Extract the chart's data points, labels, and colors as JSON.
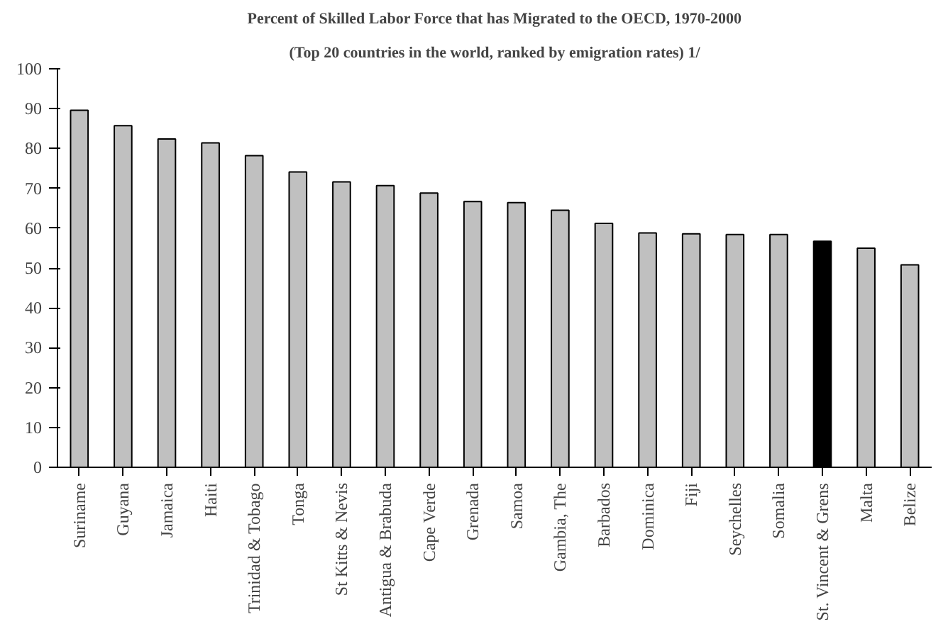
{
  "chart_data": {
    "type": "bar",
    "title": "Percent of Skilled Labor Force that has Migrated to the OECD, 1970-2000",
    "subtitle": "(Top 20 countries in the world, ranked by emigration rates) 1/",
    "categories": [
      "Suriname",
      "Guyana",
      "Jamaica",
      "Haiti",
      "Trinidad & Tobago",
      "Tonga",
      "St Kitts & Nevis",
      "Antigua & Brabuda",
      "Cape Verde",
      "Grenada",
      "Samoa",
      "Gambia, The",
      "Barbados",
      "Dominica",
      "Fiji",
      "Seychelles",
      "Somalia",
      "St. Vincent & Grens",
      "Malta",
      "Belize"
    ],
    "values": [
      89.6,
      85.7,
      82.4,
      81.4,
      78.2,
      74.1,
      71.6,
      70.7,
      68.8,
      66.7,
      66.4,
      64.5,
      61.2,
      58.8,
      58.6,
      58.4,
      58.4,
      56.7,
      55.0,
      50.8
    ],
    "colors": [
      "#c0c0c0",
      "#c0c0c0",
      "#c0c0c0",
      "#c0c0c0",
      "#c0c0c0",
      "#c0c0c0",
      "#c0c0c0",
      "#c0c0c0",
      "#c0c0c0",
      "#c0c0c0",
      "#c0c0c0",
      "#c0c0c0",
      "#c0c0c0",
      "#c0c0c0",
      "#c0c0c0",
      "#c0c0c0",
      "#c0c0c0",
      "#000000",
      "#c0c0c0",
      "#c0c0c0"
    ],
    "ylim": [
      0,
      100
    ],
    "yticks": [
      0,
      10,
      20,
      30,
      40,
      50,
      60,
      70,
      80,
      90,
      100
    ],
    "grid": false
  }
}
